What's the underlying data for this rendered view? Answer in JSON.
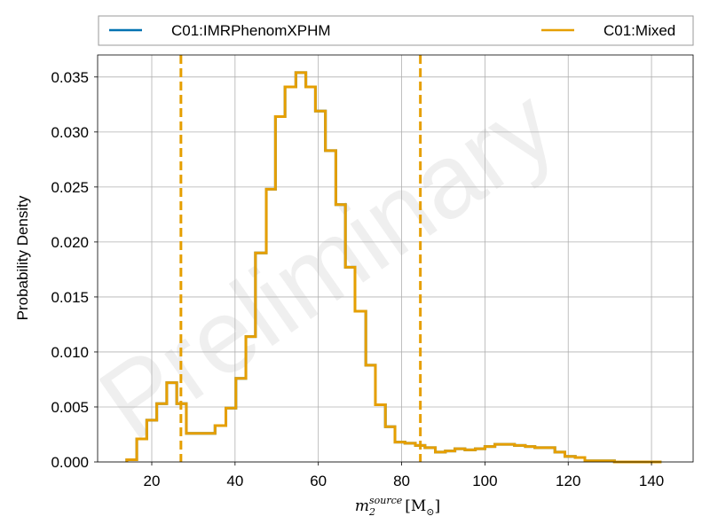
{
  "chart_data": {
    "type": "histogram",
    "xlabel": "m_2^{source} [M_⊙]",
    "xlabel_parts": {
      "var": "m",
      "sub": "2",
      "sup": "source",
      "unit": "[M",
      "unit_sub": "⊙",
      "unit_close": "]"
    },
    "ylabel": "Probability Density",
    "xlim": [
      7,
      150
    ],
    "ylim": [
      0,
      0.037
    ],
    "xticks": [
      20,
      40,
      60,
      80,
      100,
      120,
      140
    ],
    "yticks": [
      0.0,
      0.005,
      0.01,
      0.015,
      0.02,
      0.025,
      0.03,
      0.035
    ],
    "ytick_labels": [
      "0.000",
      "0.005",
      "0.010",
      "0.015",
      "0.020",
      "0.025",
      "0.030",
      "0.035"
    ],
    "grid": true,
    "legend_placement": "top, above plot",
    "watermark": "Preliminary",
    "bin_edges": [
      14.0,
      16.4,
      18.8,
      21.2,
      23.6,
      26.0,
      28.3,
      30.5,
      32.9,
      35.2,
      37.8,
      40.2,
      42.6,
      44.9,
      47.5,
      49.7,
      52.0,
      54.6,
      57.0,
      59.3,
      61.7,
      64.2,
      66.5,
      68.8,
      71.4,
      73.7,
      76.1,
      78.4,
      80.8,
      83.3,
      85.6,
      88.1,
      90.5,
      92.8,
      95.2,
      97.7,
      100.0,
      102.4,
      104.9,
      107.1,
      109.7,
      112.0,
      114.4,
      116.8,
      119.2,
      121.7,
      124.0,
      126.3,
      128.8,
      131.1,
      133.5,
      135.9,
      138.3,
      140.7,
      142.4
    ],
    "series": [
      {
        "name": "C01:IMRPhenomXPHM",
        "color": "#0072b2",
        "values": [
          0.0002,
          0.0021,
          0.0038,
          0.0053,
          0.0072,
          0.0053,
          0.0026,
          0.0026,
          0.0026,
          0.0033,
          0.0049,
          0.0076,
          0.0114,
          0.019,
          0.0248,
          0.0314,
          0.0341,
          0.0354,
          0.0341,
          0.0319,
          0.0283,
          0.0234,
          0.0177,
          0.0137,
          0.0088,
          0.0052,
          0.0032,
          0.0018,
          0.0017,
          0.0015,
          0.0013,
          0.0009,
          0.001,
          0.0012,
          0.0011,
          0.0012,
          0.0014,
          0.0016,
          0.0016,
          0.0015,
          0.0014,
          0.0013,
          0.0013,
          0.0009,
          0.0005,
          0.0004,
          0.0001,
          0.0001,
          0.0001,
          0.0,
          0.0,
          0.0,
          0.0,
          0.0
        ]
      },
      {
        "name": "C01:Mixed",
        "color": "#e69f00",
        "values": [
          0.0002,
          0.0021,
          0.0038,
          0.0053,
          0.0072,
          0.0053,
          0.0026,
          0.0026,
          0.0026,
          0.0033,
          0.0049,
          0.0076,
          0.0114,
          0.019,
          0.0248,
          0.0314,
          0.0341,
          0.0354,
          0.0341,
          0.0319,
          0.0283,
          0.0234,
          0.0177,
          0.0137,
          0.0088,
          0.0052,
          0.0032,
          0.0018,
          0.0017,
          0.0015,
          0.0013,
          0.0009,
          0.001,
          0.0012,
          0.0011,
          0.0012,
          0.0014,
          0.0016,
          0.0016,
          0.0015,
          0.0014,
          0.0013,
          0.0013,
          0.0009,
          0.0005,
          0.0004,
          0.0001,
          0.0001,
          0.0001,
          0.0,
          0.0,
          0.0,
          0.0,
          0.0
        ]
      }
    ],
    "vlines": [
      {
        "x": 27.0,
        "color": "#e69f00",
        "style": "dashed"
      },
      {
        "x": 84.5,
        "color": "#e69f00",
        "style": "dashed"
      }
    ]
  }
}
